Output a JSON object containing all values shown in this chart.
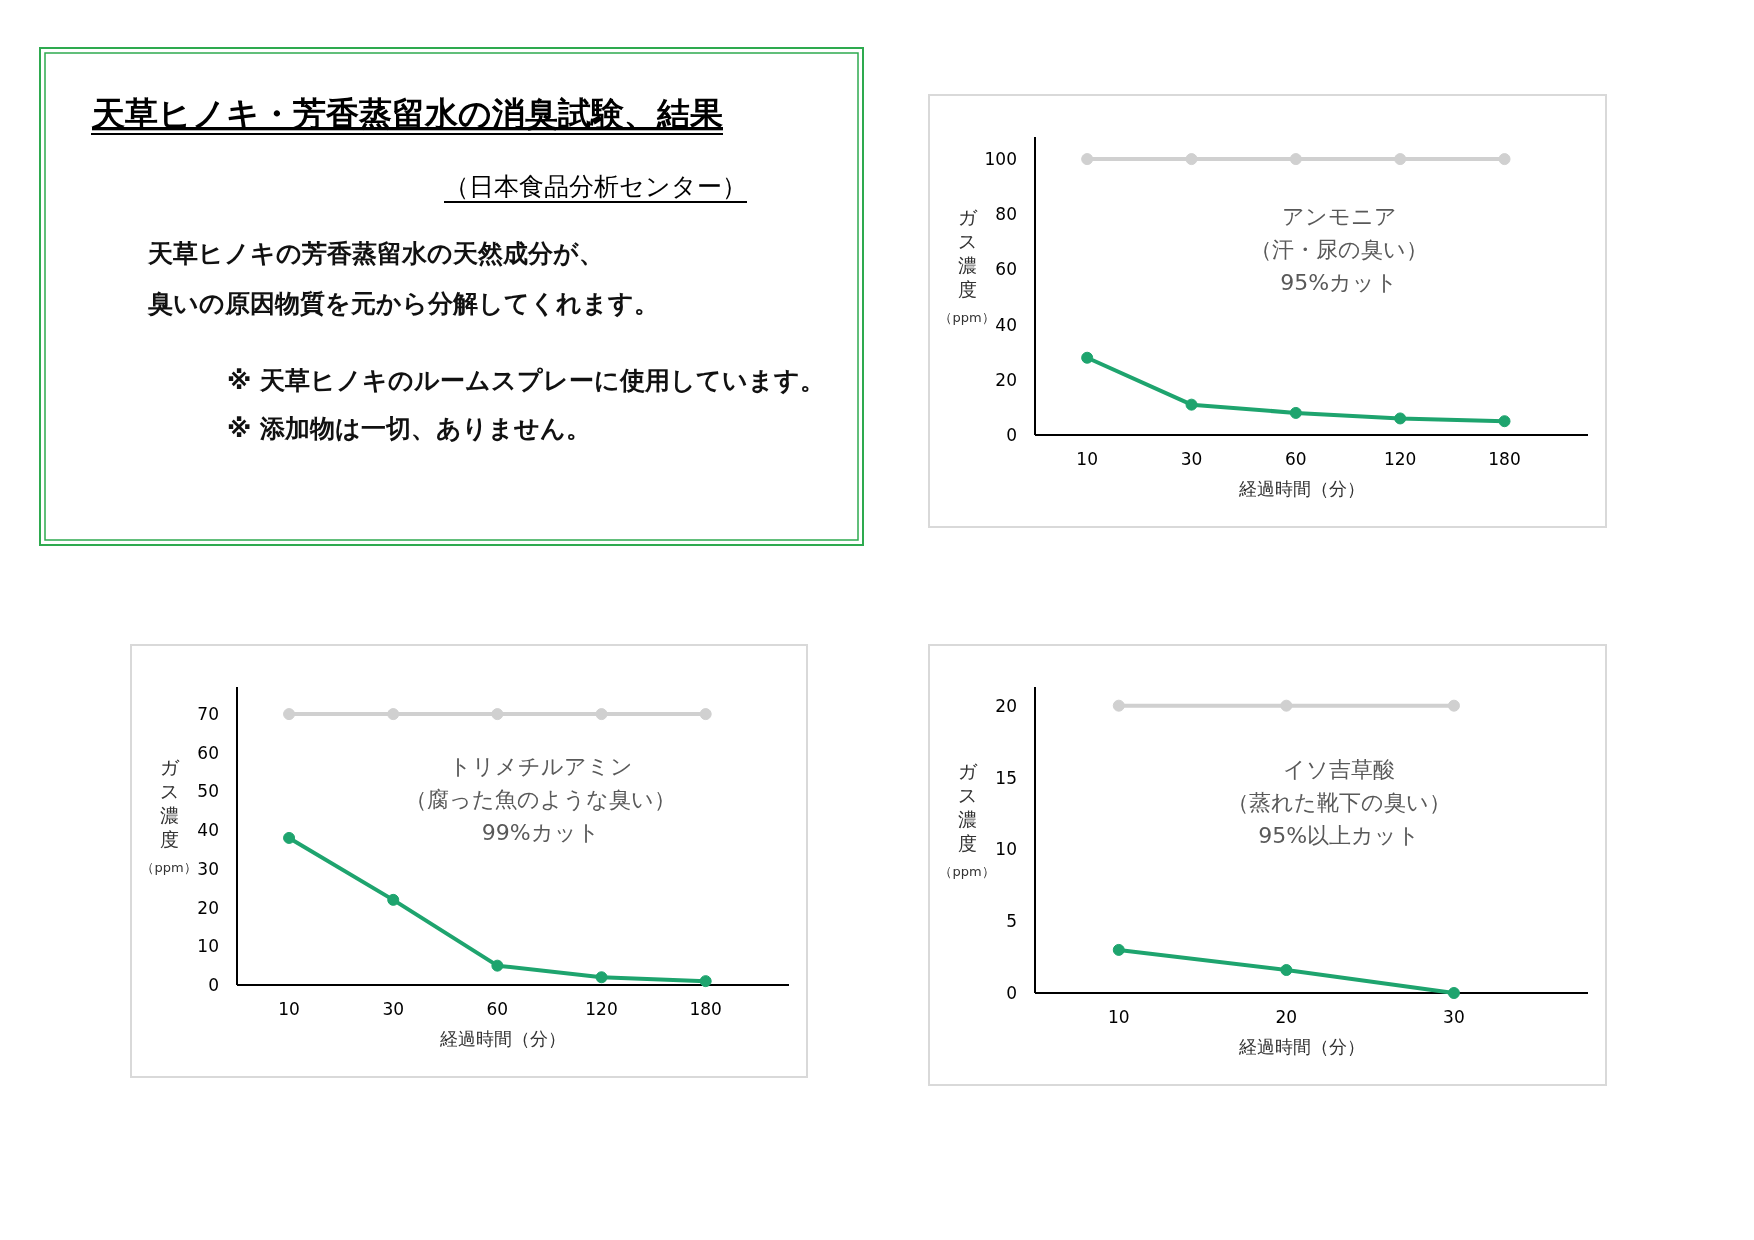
{
  "chart_data": [
    {
      "type": "other",
      "title": "天草ヒノキ・芳香蒸留水の消臭試験、結果",
      "subtitle": "（日本食品分析センター）",
      "annotations": [
        "天草ヒノキの芳香蒸留水の天然成分が、",
        "臭いの原因物質を元から分解してくれます。",
        "※ 天草ヒノキのルームスプレーに使用しています。",
        "※ 添加物は一切、ありません。"
      ]
    },
    {
      "type": "line",
      "marker": "circle",
      "xlabel": "経過時間（分）",
      "ylabel": "ガス濃度（ppm）",
      "categories": [
        "10",
        "30",
        "60",
        "120",
        "180"
      ],
      "ylim": [
        0,
        108
      ],
      "yticks": [
        0,
        20,
        40,
        60,
        80,
        100
      ],
      "annotations": [
        "アンモニア",
        "（汗・尿の臭い）",
        "95%カット"
      ],
      "series": [
        {
          "color": "#d0d0d0",
          "values": [
            100,
            100,
            100,
            100,
            100
          ]
        },
        {
          "color": "#1ea46e",
          "values": [
            28,
            11,
            8,
            6,
            5
          ]
        }
      ]
    },
    {
      "type": "line",
      "marker": "circle",
      "xlabel": "経過時間（分）",
      "ylabel": "ガス濃度（ppm）",
      "categories": [
        "10",
        "30",
        "60",
        "120",
        "180"
      ],
      "ylim": [
        0,
        77
      ],
      "yticks": [
        0,
        10,
        20,
        30,
        40,
        50,
        60,
        70
      ],
      "annotations": [
        "トリメチルアミン",
        "（腐った魚のような臭い）",
        "99%カット"
      ],
      "series": [
        {
          "color": "#d0d0d0",
          "values": [
            70,
            70,
            70,
            70,
            70
          ]
        },
        {
          "color": "#1ea46e",
          "values": [
            38,
            22,
            5,
            2,
            1
          ]
        }
      ]
    },
    {
      "type": "line",
      "marker": "circle",
      "xlabel": "経過時間（分）",
      "ylabel": "ガス濃度（ppm）",
      "categories": [
        "10",
        "20",
        "30"
      ],
      "ylim": [
        0,
        21.3
      ],
      "yticks": [
        0,
        5,
        10,
        15,
        20
      ],
      "annotations": [
        "イソ吉草酸",
        "（蒸れた靴下の臭い）",
        "95%以上カット"
      ],
      "series": [
        {
          "color": "#d0d0d0",
          "values": [
            20,
            20,
            20
          ]
        },
        {
          "color": "#1ea46e",
          "values": [
            3,
            1.6,
            0
          ]
        }
      ]
    }
  ]
}
